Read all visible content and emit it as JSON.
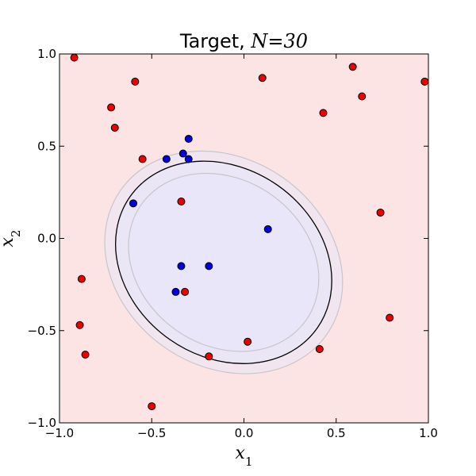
{
  "chart_data": {
    "type": "scatter",
    "title": {
      "prefix": "Target, ",
      "variable": "N",
      "equals": "=",
      "value": "30"
    },
    "xlabel": {
      "base": "x",
      "sub": "1"
    },
    "ylabel": {
      "base": "x",
      "sub": "2"
    },
    "xlim": [
      -1.0,
      1.0
    ],
    "ylim": [
      -1.0,
      1.0
    ],
    "xticks": [
      -1.0,
      -0.5,
      0.0,
      0.5,
      1.0
    ],
    "yticks": [
      -1.0,
      -0.5,
      0.0,
      0.5,
      1.0
    ],
    "xtick_labels": [
      "−1.0",
      "−0.5",
      "0.0",
      "0.5",
      "1.0"
    ],
    "ytick_labels": [
      "−1.0",
      "−0.5",
      "0.0",
      "0.5",
      "1.0"
    ],
    "grid": false,
    "background_color": "#fde4e4",
    "region_color": "#e8e6f8",
    "ellipse": {
      "center": [
        -0.11,
        -0.13
      ],
      "rx": 0.62,
      "ry": 0.51,
      "rotation_deg": -35,
      "contour_scales": [
        0.88,
        1.0,
        1.1
      ]
    },
    "series": [
      {
        "color": "#0000dd",
        "points": [
          [
            -0.3,
            0.54
          ],
          [
            -0.33,
            0.46
          ],
          [
            -0.42,
            0.43
          ],
          [
            -0.3,
            0.43
          ],
          [
            -0.6,
            0.19
          ],
          [
            0.13,
            0.05
          ],
          [
            -0.34,
            -0.15
          ],
          [
            -0.19,
            -0.15
          ],
          [
            -0.37,
            -0.29
          ]
        ]
      },
      {
        "color": "#ee0000",
        "points": [
          [
            -0.92,
            0.98
          ],
          [
            -0.59,
            0.85
          ],
          [
            0.1,
            0.87
          ],
          [
            0.59,
            0.93
          ],
          [
            0.98,
            0.85
          ],
          [
            -0.72,
            0.71
          ],
          [
            0.64,
            0.77
          ],
          [
            -0.7,
            0.6
          ],
          [
            0.43,
            0.68
          ],
          [
            -0.55,
            0.43
          ],
          [
            -0.34,
            0.2
          ],
          [
            0.74,
            0.14
          ],
          [
            -0.88,
            -0.22
          ],
          [
            -0.32,
            -0.29
          ],
          [
            -0.89,
            -0.47
          ],
          [
            0.79,
            -0.43
          ],
          [
            0.02,
            -0.56
          ],
          [
            0.41,
            -0.6
          ],
          [
            -0.86,
            -0.63
          ],
          [
            -0.19,
            -0.64
          ],
          [
            -0.5,
            -0.91
          ]
        ]
      }
    ]
  }
}
